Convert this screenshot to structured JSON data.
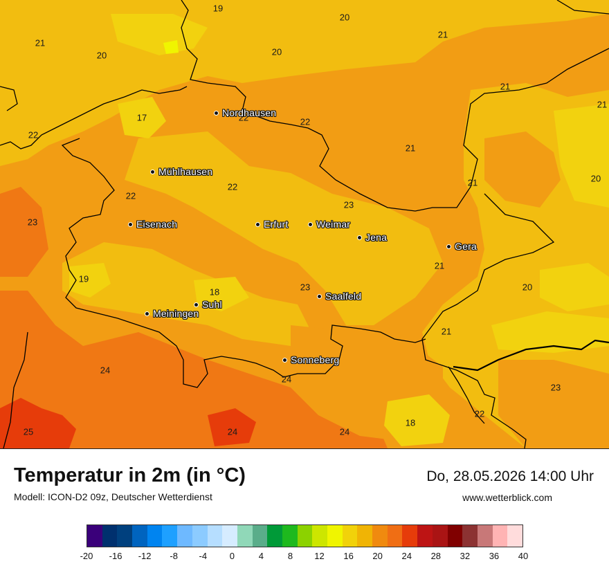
{
  "title": "Temperatur in 2m (in °C)",
  "subtitle": "Modell: ICON-D2 09z, Deutscher Wetterdienst",
  "datetime": "Do, 28.05.2026 14:00 Uhr",
  "website": "www.wetterblick.com",
  "cities": [
    {
      "name": "Nordhausen"
    },
    {
      "name": "Mühlhausen"
    },
    {
      "name": "Eisenach"
    },
    {
      "name": "Erfurt"
    },
    {
      "name": "Weimar"
    },
    {
      "name": "Jena"
    },
    {
      "name": "Gera"
    },
    {
      "name": "Suhl"
    },
    {
      "name": "Meiningen"
    },
    {
      "name": "Saalfeld"
    },
    {
      "name": "Sonneberg"
    }
  ],
  "values": [
    "19",
    "20",
    "21",
    "20",
    "21",
    "20",
    "21",
    "21",
    "17",
    "22",
    "22",
    "22",
    "21",
    "21",
    "20",
    "22",
    "22",
    "23",
    "23",
    "19",
    "18",
    "21",
    "20",
    "21",
    "24",
    "24",
    "23",
    "22",
    "18",
    "25",
    "24",
    "24"
  ],
  "legend": {
    "colors": [
      "#3a007a",
      "#00306e",
      "#00407e",
      "#0064bf",
      "#0084f0",
      "#1ea0ff",
      "#6eb9ff",
      "#8ccbff",
      "#b6deff",
      "#d6ecff",
      "#90d8b8",
      "#5aad8a",
      "#009a38",
      "#1eb91e",
      "#8cd200",
      "#cde600",
      "#f0f500",
      "#f1d20a",
      "#f0b405",
      "#f08a0f",
      "#f06e14",
      "#e63c0a",
      "#bd1414",
      "#aa1414",
      "#800000",
      "#8c3232",
      "#c87878",
      "#ffb4b4",
      "#ffdcdc"
    ],
    "ticks": [
      "-20",
      "-16",
      "-12",
      "-8",
      "-4",
      "0",
      "4",
      "8",
      "12",
      "16",
      "20",
      "24",
      "28",
      "32",
      "36",
      "40"
    ]
  },
  "colors": {
    "bg_orange": "#f07814",
    "mid_orange": "#f29d14",
    "yellow": "#f2bd10",
    "light_yellow": "#f2d20f"
  }
}
